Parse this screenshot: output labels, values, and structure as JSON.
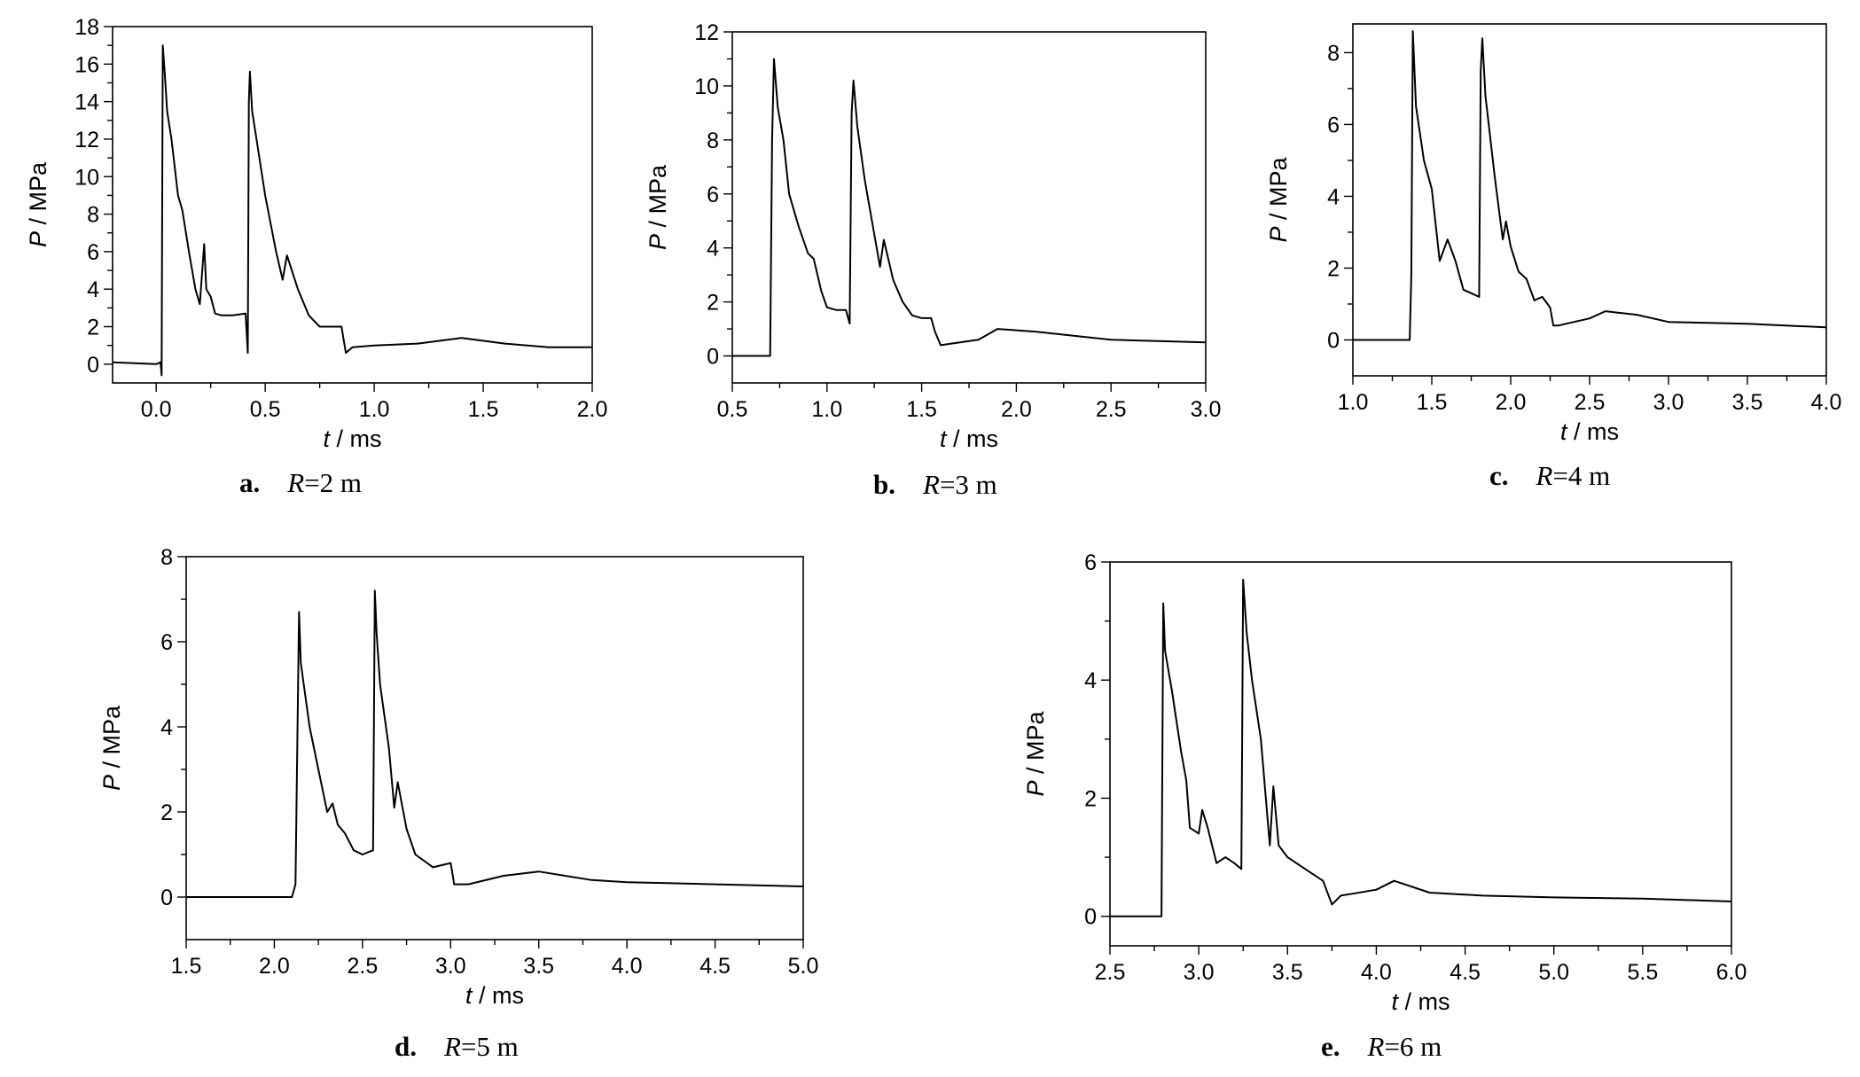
{
  "chart_data": [
    {
      "type": "line",
      "caption": {
        "letter": "a.",
        "var": "R",
        "value": "=2 m"
      },
      "xlabel": {
        "var": "t",
        "unit": " / ms"
      },
      "ylabel": {
        "var": "P",
        "unit": " / MPa"
      },
      "xlim": [
        -0.2,
        2.0
      ],
      "ylim": [
        -1,
        18
      ],
      "xticks": [
        {
          "v": 0.0,
          "label": "0.0"
        },
        {
          "v": 0.5,
          "label": "0.5"
        },
        {
          "v": 1.0,
          "label": "1.0"
        },
        {
          "v": 1.5,
          "label": "1.5"
        },
        {
          "v": 2.0,
          "label": "2.0"
        }
      ],
      "yticks": [
        {
          "v": 0,
          "label": "0"
        },
        {
          "v": 2,
          "label": "2"
        },
        {
          "v": 4,
          "label": "4"
        },
        {
          "v": 6,
          "label": "6"
        },
        {
          "v": 8,
          "label": "8"
        },
        {
          "v": 10,
          "label": "10"
        },
        {
          "v": 12,
          "label": "12"
        },
        {
          "v": 14,
          "label": "14"
        },
        {
          "v": 16,
          "label": "16"
        },
        {
          "v": 18,
          "label": "18"
        }
      ],
      "series": [
        {
          "x": [
            -0.2,
            0.0,
            0.02,
            0.025,
            0.03,
            0.04,
            0.05,
            0.07,
            0.1,
            0.12,
            0.15,
            0.18,
            0.2,
            0.22,
            0.23,
            0.25,
            0.27,
            0.3,
            0.35,
            0.41,
            0.42,
            0.425,
            0.43,
            0.44,
            0.46,
            0.5,
            0.55,
            0.58,
            0.6,
            0.65,
            0.7,
            0.75,
            0.8,
            0.85,
            0.87,
            0.9,
            1.0,
            1.2,
            1.4,
            1.6,
            1.8,
            2.0
          ],
          "y": [
            0.1,
            0.0,
            0.1,
            -0.6,
            17.0,
            15.4,
            13.5,
            12.0,
            9.0,
            8.2,
            6.0,
            4.0,
            3.2,
            6.4,
            4.0,
            3.6,
            2.7,
            2.6,
            2.6,
            2.7,
            0.6,
            14.0,
            15.6,
            13.5,
            12.0,
            9.0,
            6.0,
            4.5,
            5.8,
            4.0,
            2.6,
            2.0,
            2.0,
            2.0,
            0.6,
            0.9,
            1.0,
            1.1,
            1.4,
            1.1,
            0.9,
            0.9
          ]
        }
      ]
    },
    {
      "type": "line",
      "caption": {
        "letter": "b.",
        "var": "R",
        "value": "=3 m"
      },
      "xlabel": {
        "var": "t",
        "unit": " / ms"
      },
      "ylabel": {
        "var": "P",
        "unit": " / MPa"
      },
      "xlim": [
        0.5,
        3.0
      ],
      "ylim": [
        -1,
        12
      ],
      "xticks": [
        {
          "v": 0.5,
          "label": "0.5"
        },
        {
          "v": 1.0,
          "label": "1.0"
        },
        {
          "v": 1.5,
          "label": "1.5"
        },
        {
          "v": 2.0,
          "label": "2.0"
        },
        {
          "v": 2.5,
          "label": "2.5"
        },
        {
          "v": 3.0,
          "label": "3.0"
        }
      ],
      "yticks": [
        {
          "v": 0,
          "label": "0"
        },
        {
          "v": 2,
          "label": "2"
        },
        {
          "v": 4,
          "label": "4"
        },
        {
          "v": 6,
          "label": "6"
        },
        {
          "v": 8,
          "label": "8"
        },
        {
          "v": 10,
          "label": "10"
        },
        {
          "v": 12,
          "label": "12"
        }
      ],
      "series": [
        {
          "x": [
            0.5,
            0.7,
            0.71,
            0.72,
            0.74,
            0.77,
            0.8,
            0.85,
            0.9,
            0.93,
            0.97,
            1.0,
            1.05,
            1.1,
            1.12,
            1.13,
            1.14,
            1.16,
            1.2,
            1.25,
            1.28,
            1.3,
            1.35,
            1.4,
            1.45,
            1.5,
            1.55,
            1.57,
            1.6,
            1.8,
            1.9,
            2.1,
            2.5,
            3.0
          ],
          "y": [
            0.0,
            0.0,
            8.0,
            11.0,
            9.2,
            8.0,
            6.0,
            4.8,
            3.8,
            3.6,
            2.4,
            1.8,
            1.7,
            1.7,
            1.2,
            9.0,
            10.2,
            8.5,
            6.5,
            4.5,
            3.3,
            4.3,
            2.8,
            2.0,
            1.5,
            1.4,
            1.4,
            0.9,
            0.4,
            0.6,
            1.0,
            0.9,
            0.6,
            0.5
          ]
        }
      ]
    },
    {
      "type": "line",
      "caption": {
        "letter": "c.",
        "var": "R",
        "value": "=4 m"
      },
      "xlabel": {
        "var": "t",
        "unit": " / ms"
      },
      "ylabel": {
        "var": "P",
        "unit": " / MPa"
      },
      "xlim": [
        1.0,
        4.0
      ],
      "ylim": [
        -1,
        8.8
      ],
      "xticks": [
        {
          "v": 1.0,
          "label": "1.0"
        },
        {
          "v": 1.5,
          "label": "1.5"
        },
        {
          "v": 2.0,
          "label": "2.0"
        },
        {
          "v": 2.5,
          "label": "2.5"
        },
        {
          "v": 3.0,
          "label": "3.0"
        },
        {
          "v": 3.5,
          "label": "3.5"
        },
        {
          "v": 4.0,
          "label": "4.0"
        }
      ],
      "yticks": [
        {
          "v": 0,
          "label": "0"
        },
        {
          "v": 2,
          "label": "2"
        },
        {
          "v": 4,
          "label": "4"
        },
        {
          "v": 6,
          "label": "6"
        },
        {
          "v": 8,
          "label": "8"
        }
      ],
      "series": [
        {
          "x": [
            1.0,
            1.36,
            1.37,
            1.38,
            1.4,
            1.45,
            1.5,
            1.55,
            1.6,
            1.65,
            1.7,
            1.75,
            1.8,
            1.81,
            1.82,
            1.84,
            1.9,
            1.95,
            1.97,
            2.0,
            2.05,
            2.1,
            2.15,
            2.2,
            2.25,
            2.27,
            2.3,
            2.5,
            2.6,
            2.8,
            3.0,
            3.5,
            4.0
          ],
          "y": [
            0.0,
            0.0,
            1.8,
            8.6,
            6.5,
            5.0,
            4.2,
            2.2,
            2.8,
            2.2,
            1.4,
            1.3,
            1.2,
            7.5,
            8.4,
            6.8,
            4.5,
            2.8,
            3.3,
            2.6,
            1.9,
            1.7,
            1.1,
            1.2,
            0.9,
            0.4,
            0.4,
            0.6,
            0.8,
            0.7,
            0.5,
            0.45,
            0.35
          ]
        }
      ]
    },
    {
      "type": "line",
      "caption": {
        "letter": "d.",
        "var": "R",
        "value": "=5 m"
      },
      "xlabel": {
        "var": "t",
        "unit": " / ms"
      },
      "ylabel": {
        "var": "P",
        "unit": " / MPa"
      },
      "xlim": [
        1.5,
        5.0
      ],
      "ylim": [
        -1,
        8
      ],
      "xticks": [
        {
          "v": 1.5,
          "label": "1.5"
        },
        {
          "v": 2.0,
          "label": "2.0"
        },
        {
          "v": 2.5,
          "label": "2.5"
        },
        {
          "v": 3.0,
          "label": "3.0"
        },
        {
          "v": 3.5,
          "label": "3.5"
        },
        {
          "v": 4.0,
          "label": "4.0"
        },
        {
          "v": 4.5,
          "label": "4.5"
        },
        {
          "v": 5.0,
          "label": "5.0"
        }
      ],
      "yticks": [
        {
          "v": 0,
          "label": "0"
        },
        {
          "v": 2,
          "label": "2"
        },
        {
          "v": 4,
          "label": "4"
        },
        {
          "v": 6,
          "label": "6"
        },
        {
          "v": 8,
          "label": "8"
        }
      ],
      "series": [
        {
          "x": [
            1.5,
            2.1,
            2.12,
            2.14,
            2.15,
            2.2,
            2.25,
            2.3,
            2.33,
            2.36,
            2.4,
            2.45,
            2.5,
            2.56,
            2.57,
            2.58,
            2.6,
            2.65,
            2.68,
            2.7,
            2.75,
            2.8,
            2.9,
            3.0,
            3.02,
            3.1,
            3.3,
            3.5,
            3.8,
            4.0,
            4.5,
            5.0
          ],
          "y": [
            0.0,
            0.0,
            0.3,
            6.7,
            5.5,
            4.0,
            3.0,
            2.0,
            2.2,
            1.7,
            1.5,
            1.1,
            1.0,
            1.1,
            7.2,
            6.2,
            5.0,
            3.5,
            2.1,
            2.7,
            1.6,
            1.0,
            0.7,
            0.8,
            0.3,
            0.3,
            0.5,
            0.6,
            0.4,
            0.35,
            0.3,
            0.25
          ]
        }
      ]
    },
    {
      "type": "line",
      "caption": {
        "letter": "e.",
        "var": "R",
        "value": "=6 m"
      },
      "xlabel": {
        "var": "t",
        "unit": " / ms"
      },
      "ylabel": {
        "var": "P",
        "unit": " / MPa"
      },
      "xlim": [
        2.5,
        6.0
      ],
      "ylim": [
        -0.5,
        6
      ],
      "xticks": [
        {
          "v": 2.5,
          "label": "2.5"
        },
        {
          "v": 3.0,
          "label": "3.0"
        },
        {
          "v": 3.5,
          "label": "3.5"
        },
        {
          "v": 4.0,
          "label": "4.0"
        },
        {
          "v": 4.5,
          "label": "4.5"
        },
        {
          "v": 5.0,
          "label": "5.0"
        },
        {
          "v": 5.5,
          "label": "5.5"
        },
        {
          "v": 6.0,
          "label": "6.0"
        }
      ],
      "yticks": [
        {
          "v": 0,
          "label": "0"
        },
        {
          "v": 2,
          "label": "2"
        },
        {
          "v": 4,
          "label": "4"
        },
        {
          "v": 6,
          "label": "6"
        }
      ],
      "series": [
        {
          "x": [
            2.5,
            2.79,
            2.8,
            2.81,
            2.85,
            2.9,
            2.93,
            2.95,
            3.0,
            3.02,
            3.05,
            3.1,
            3.15,
            3.2,
            3.24,
            3.25,
            3.27,
            3.3,
            3.35,
            3.4,
            3.42,
            3.45,
            3.5,
            3.6,
            3.7,
            3.75,
            3.8,
            4.0,
            4.1,
            4.3,
            4.6,
            5.0,
            5.5,
            6.0
          ],
          "y": [
            0.0,
            0.0,
            5.3,
            4.5,
            3.8,
            2.8,
            2.3,
            1.5,
            1.4,
            1.8,
            1.5,
            0.9,
            1.0,
            0.9,
            0.8,
            5.7,
            4.8,
            4.0,
            3.0,
            1.2,
            2.2,
            1.2,
            1.0,
            0.8,
            0.6,
            0.2,
            0.35,
            0.45,
            0.6,
            0.4,
            0.35,
            0.32,
            0.3,
            0.25
          ]
        }
      ]
    }
  ]
}
